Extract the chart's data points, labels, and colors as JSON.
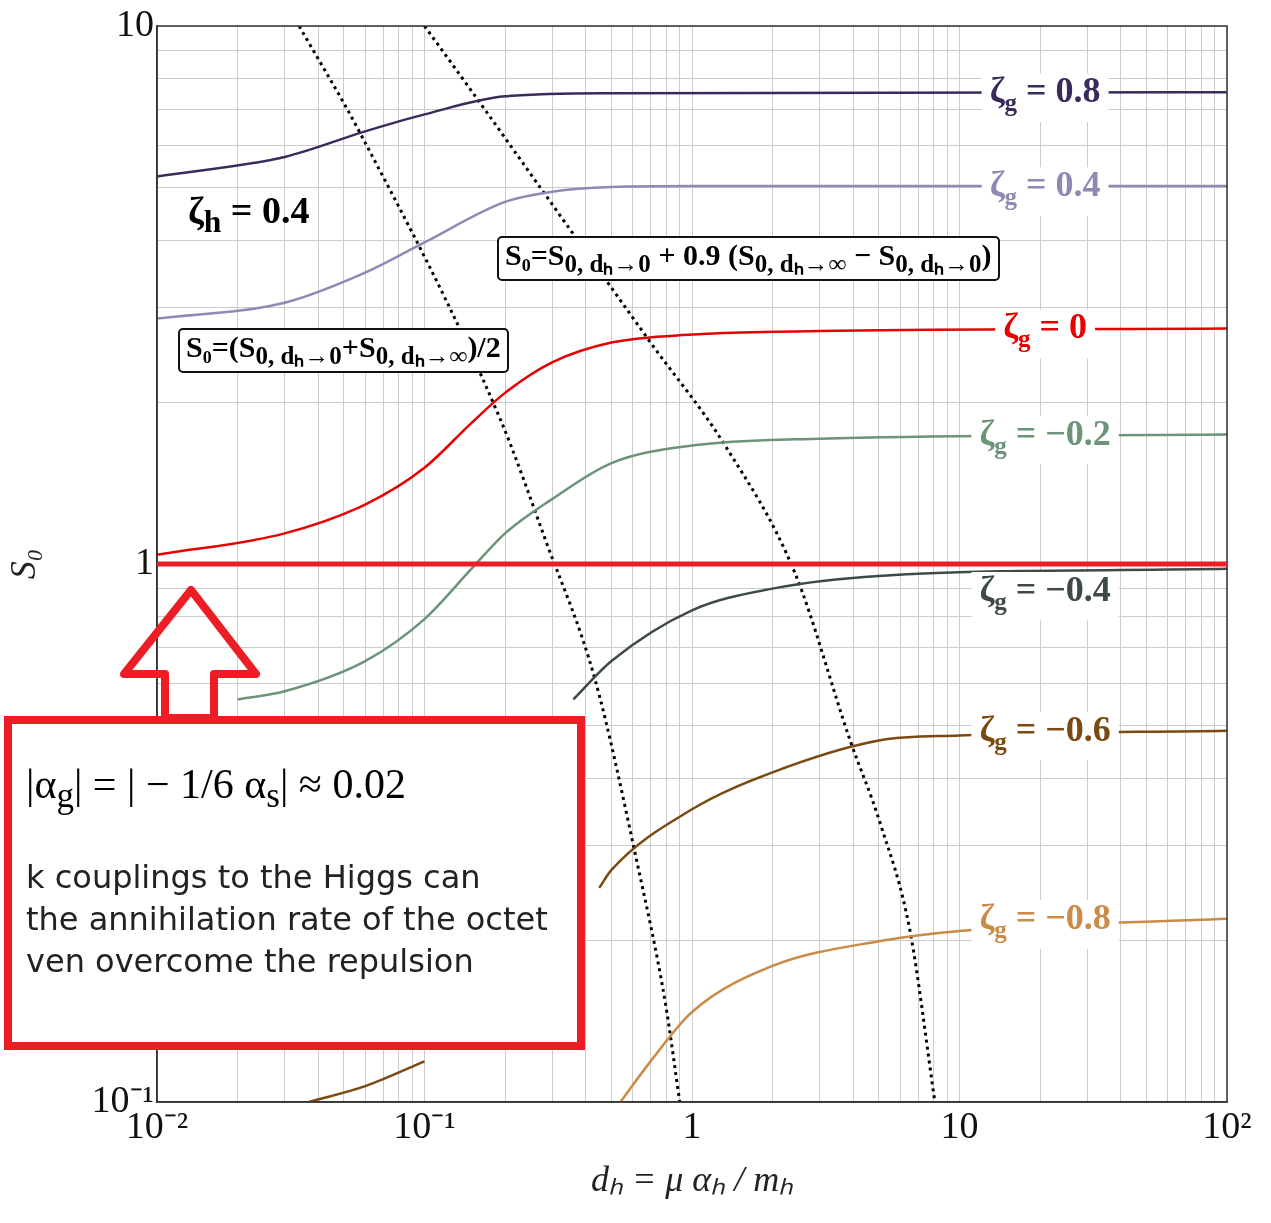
{
  "chart_data": {
    "type": "line",
    "xlabel": "dₕ = μ αₕ / mₕ",
    "ylabel": "S₀",
    "log": "xy",
    "grid": true,
    "marker": "none",
    "line_style": "solid",
    "xlim": [
      0.01,
      100
    ],
    "ylim": [
      0.1,
      10
    ],
    "xticks": [
      {
        "value": 0.01,
        "label": "10⁻²"
      },
      {
        "value": 0.02,
        "label": null
      },
      {
        "value": 0.03,
        "label": null
      },
      {
        "value": 0.04,
        "label": null
      },
      {
        "value": 0.05,
        "label": null
      },
      {
        "value": 0.06,
        "label": null
      },
      {
        "value": 0.07,
        "label": null
      },
      {
        "value": 0.08,
        "label": null
      },
      {
        "value": 0.09,
        "label": null
      },
      {
        "value": 0.1,
        "label": "10⁻¹"
      },
      {
        "value": 0.2,
        "label": null
      },
      {
        "value": 0.3,
        "label": null
      },
      {
        "value": 0.4,
        "label": null
      },
      {
        "value": 0.5,
        "label": null
      },
      {
        "value": 0.6,
        "label": null
      },
      {
        "value": 0.7,
        "label": null
      },
      {
        "value": 0.8,
        "label": null
      },
      {
        "value": 0.9,
        "label": null
      },
      1,
      {
        "value": 2,
        "label": null
      },
      {
        "value": 3,
        "label": null
      },
      {
        "value": 4,
        "label": null
      },
      {
        "value": 5,
        "label": null
      },
      {
        "value": 6,
        "label": null
      },
      {
        "value": 7,
        "label": null
      },
      {
        "value": 8,
        "label": null
      },
      {
        "value": 9,
        "label": null
      },
      10,
      {
        "value": 20,
        "label": null
      },
      {
        "value": 30,
        "label": null
      },
      {
        "value": 40,
        "label": null
      },
      {
        "value": 50,
        "label": null
      },
      {
        "value": 60,
        "label": null
      },
      {
        "value": 70,
        "label": null
      },
      {
        "value": 80,
        "label": null
      },
      {
        "value": 90,
        "label": null
      },
      {
        "value": 100,
        "label": "10²"
      }
    ],
    "yticks": [
      {
        "value": 0.1,
        "label": "10⁻¹"
      },
      {
        "value": 0.2,
        "label": null
      },
      {
        "value": 0.3,
        "label": null
      },
      {
        "value": 0.4,
        "label": null
      },
      {
        "value": 0.5,
        "label": null
      },
      {
        "value": 0.6,
        "label": null
      },
      {
        "value": 0.7,
        "label": null
      },
      {
        "value": 0.8,
        "label": null
      },
      {
        "value": 0.9,
        "label": null
      },
      1,
      {
        "value": 2,
        "label": null
      },
      {
        "value": 3,
        "label": null
      },
      {
        "value": 4,
        "label": null
      },
      {
        "value": 5,
        "label": null
      },
      {
        "value": 6,
        "label": null
      },
      {
        "value": 7,
        "label": null
      },
      {
        "value": 8,
        "label": null
      },
      {
        "value": 9,
        "label": null
      },
      10
    ],
    "series": [
      {
        "name": "ζ$_{g}$ = 0.8",
        "color": "#3b2a5c",
        "x": [
          0.01,
          0.03,
          0.06,
          0.1,
          0.2,
          0.5,
          100
        ],
        "values": [
          5.25,
          5.71,
          6.37,
          6.85,
          7.4,
          7.5,
          7.53
        ]
      },
      {
        "name": "ζ$_{g}$ = 0.4",
        "color": "#9089b3",
        "x": [
          0.01,
          0.03,
          0.06,
          0.1,
          0.2,
          0.3,
          0.5,
          1,
          100
        ],
        "values": [
          2.86,
          3.06,
          3.48,
          3.96,
          4.71,
          4.92,
          5.02,
          5.04,
          5.04
        ]
      },
      {
        "name": "ζ$_{g}$ = 0",
        "color": "#e60000",
        "x": [
          0.01,
          0.03,
          0.06,
          0.1,
          0.15,
          0.2,
          0.3,
          0.5,
          1,
          3,
          100
        ],
        "values": [
          1.04,
          1.14,
          1.29,
          1.51,
          1.83,
          2.08,
          2.37,
          2.58,
          2.67,
          2.71,
          2.74
        ]
      },
      {
        "name": "ζ$_{g}$ = −0.2",
        "color": "#6b9479",
        "x": [
          0.02,
          0.03,
          0.06,
          0.1,
          0.15,
          0.2,
          0.3,
          0.5,
          1,
          3,
          100
        ],
        "values": [
          0.56,
          0.58,
          0.66,
          0.79,
          0.98,
          1.14,
          1.32,
          1.54,
          1.66,
          1.71,
          1.74
        ]
      },
      {
        "name": "ζ$_{g}$ = −0.4",
        "color": "#3e4a44",
        "x": [
          0.36,
          0.5,
          1,
          2,
          5,
          100
        ],
        "values": [
          0.56,
          0.66,
          0.82,
          0.9,
          0.95,
          0.98
        ]
      },
      {
        "name": "ζ$_{g}$ = −0.6",
        "color": "#7b4a12",
        "x": [
          0.037,
          0.06,
          0.1,
          0.2,
          0.45,
          0.5,
          1,
          2,
          5,
          10,
          100
        ],
        "values": [
          0.1,
          0.107,
          0.119,
          null,
          0.25,
          0.27,
          0.35,
          0.41,
          0.47,
          0.48,
          0.49
        ]
      },
      {
        "name": "ζ$_{g}$ = −0.8",
        "color": "#c98b45",
        "x": [
          0.54,
          0.7,
          1,
          2,
          5,
          10,
          100
        ],
        "values": [
          0.1,
          0.119,
          0.147,
          0.179,
          0.199,
          0.208,
          0.219
        ]
      },
      {
        "color": "#000000",
        "line_style": "dotted",
        "x": [
          0.034,
          0.057,
          0.191,
          0.283,
          0.434,
          0.622,
          0.793,
          0.9
        ],
        "values": [
          10,
          6.37,
          1.87,
          1.11,
          0.61,
          0.28,
          0.154,
          0.1
        ]
      },
      {
        "color": "#000000",
        "line_style": "dotted",
        "x": [
          0.1,
          0.155,
          0.27,
          0.7,
          1.33,
          2.43,
          3.9,
          5.05,
          6.53,
          8.09
        ],
        "values": [
          10,
          7.4,
          5.02,
          2.58,
          1.66,
          0.96,
          0.47,
          0.33,
          0.208,
          0.1
        ]
      }
    ],
    "ref_lines": [
      {
        "axis": "y",
        "value": 1,
        "color": "#ee1c25"
      }
    ],
    "annotations": [
      "ζ$_{h}$ = 0.4",
      "S₀=(S$_{0, dₕ→0}$+S$_{0, dₕ→∞}$)/2",
      "S₀=S$_{0, dₕ→0}$ + 0.9 (S$_{0, dₕ→∞}$ − S$_{0, dₕ→0}$)",
      "|α$_{g}$| = | − 1/6 α$_{s}$| ≈ 0.02",
      "k couplings to the Higgs can",
      "the annihilation rate of the octet",
      "ven overcome the repulsion"
    ]
  }
}
